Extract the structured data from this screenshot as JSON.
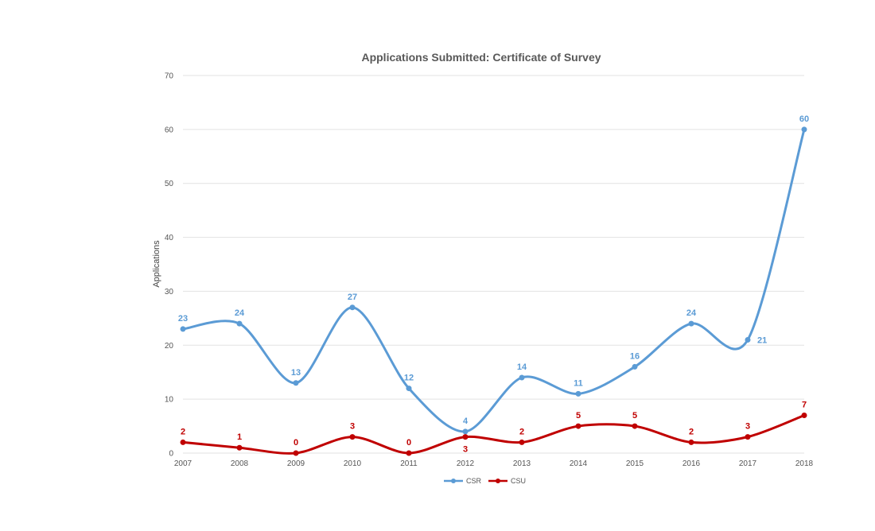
{
  "chart_data": {
    "type": "line",
    "title": "Applications Submitted:  Certificate of Survey",
    "xlabel": "",
    "ylabel": "Applications",
    "ylim": [
      0,
      70
    ],
    "yticks": [
      0,
      10,
      20,
      30,
      40,
      50,
      60,
      70
    ],
    "grid": true,
    "legend_position": "bottom-center",
    "categories": [
      "2007",
      "2008",
      "2009",
      "2010",
      "2011",
      "2012",
      "2013",
      "2014",
      "2015",
      "2016",
      "2017",
      "2018"
    ],
    "series": [
      {
        "name": "CSR",
        "color": "#5b9bd5",
        "values": [
          23,
          24,
          13,
          27,
          12,
          4,
          14,
          11,
          16,
          24,
          21,
          60
        ],
        "label_placement": [
          "above",
          "above",
          "above",
          "above",
          "above",
          "above",
          "above",
          "above",
          "above",
          "above",
          "right",
          "above"
        ]
      },
      {
        "name": "CSU",
        "color": "#c00000",
        "values": [
          2,
          1,
          0,
          3,
          0,
          3,
          2,
          5,
          5,
          2,
          3,
          7
        ],
        "label_placement": [
          "above",
          "above",
          "above",
          "above",
          "above",
          "below",
          "above",
          "above",
          "above",
          "above",
          "above",
          "above"
        ]
      }
    ]
  }
}
